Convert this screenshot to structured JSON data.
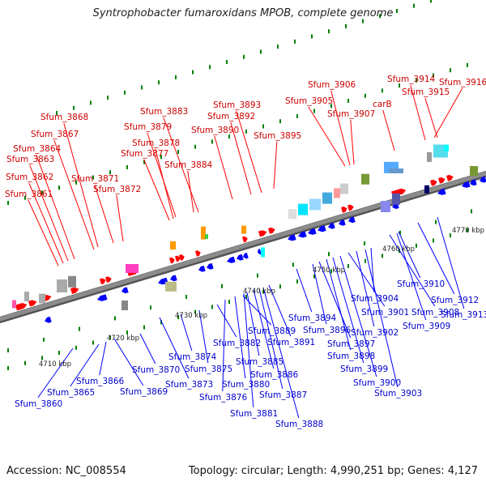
{
  "title": "Syntrophobacter fumaroxidans MPOB, complete genome",
  "footer": {
    "accession": "Accession: NC_008554",
    "summary": "Topology: circular; Length: 4,990,251 bp; Genes: 4,127"
  },
  "colors": {
    "backbone": "#8c8c8c",
    "forward": "#ff0000",
    "reverse": "#0000ff",
    "tick": "#008000",
    "label_forward": "#cc0000",
    "label_reverse": "#0000cc"
  },
  "scale_labels": [
    "4710 kbp",
    "4720 kbp",
    "4730 kbp",
    "4740 kbp",
    "4750 kbp",
    "4760 kbp",
    "4770 kbp"
  ],
  "genes_forward": [
    "Sfum_3861",
    "Sfum_3862",
    "Sfum_3863",
    "Sfum_3864",
    "Sfum_3867",
    "Sfum_3868",
    "Sfum_3871",
    "Sfum_3872",
    "Sfum_3877",
    "Sfum_3878",
    "Sfum_3879",
    "Sfum_3883",
    "Sfum_3884",
    "Sfum_3890",
    "Sfum_3892",
    "Sfum_3893",
    "Sfum_3895",
    "Sfum_3905",
    "Sfum_3906",
    "Sfum_3907",
    "carB",
    "Sfum_3914",
    "Sfum_3915",
    "Sfum_3916"
  ],
  "genes_reverse": [
    "Sfum_3860",
    "Sfum_3865",
    "Sfum_3866",
    "Sfum_3869",
    "Sfum_3870",
    "Sfum_3873",
    "Sfum_3874",
    "Sfum_3875",
    "Sfum_3876",
    "Sfum_3880",
    "Sfum_3881",
    "Sfum_3882",
    "Sfum_3885",
    "Sfum_3886",
    "Sfum_3887",
    "Sfum_3888",
    "Sfum_3889",
    "Sfum_3891",
    "Sfum_3894",
    "Sfum_3896",
    "Sfum_3897",
    "Sfum_3898",
    "Sfum_3899",
    "Sfum_3900",
    "Sfum_3901",
    "Sfum_3902",
    "Sfum_3903",
    "Sfum_3904",
    "Sfum_3908",
    "Sfum_3909",
    "Sfum_3910",
    "Sfum_3912",
    "Sfum_3913"
  ]
}
